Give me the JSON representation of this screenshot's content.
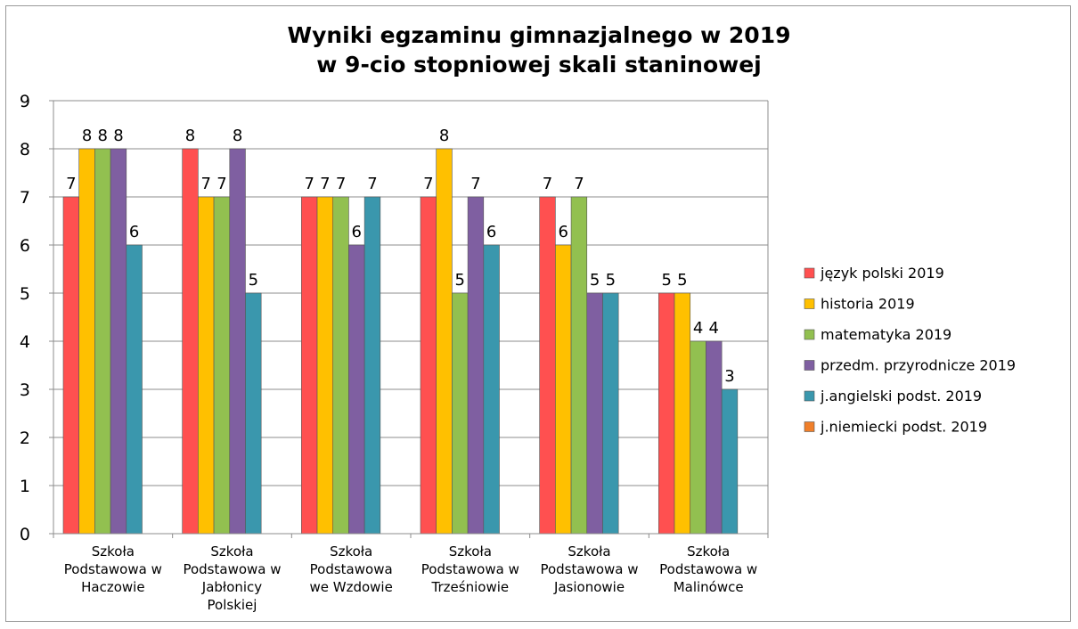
{
  "chart_data": {
    "type": "bar",
    "title_lines": [
      "Wyniki egzaminu gimnazjalnego w 2019",
      "w 9-cio stopniowej skali staninowej"
    ],
    "xlabel": "",
    "ylabel": "",
    "ylim": [
      0,
      9
    ],
    "yticks": [
      "0",
      "1",
      "2",
      "3",
      "4",
      "5",
      "6",
      "7",
      "8",
      "9"
    ],
    "grid": true,
    "legend_position": "right",
    "categories": [
      [
        "Szkoła",
        "Podstawowa w",
        "Haczowie"
      ],
      [
        "Szkoła",
        "Podstawowa w",
        "Jabłonicy",
        "Polskiej"
      ],
      [
        "Szkoła",
        "Podstawowa",
        "we Wzdowie"
      ],
      [
        "Szkoła",
        "Podstawowa w",
        "Trześniowie"
      ],
      [
        "Szkoła",
        "Podstawowa w",
        "Jasionowie"
      ],
      [
        "Szkoła",
        "Podstawowa w",
        "Malinówce"
      ]
    ],
    "series": [
      {
        "name": "język polski 2019",
        "color": "#ff5050",
        "values": [
          7,
          8,
          7,
          7,
          7,
          5
        ]
      },
      {
        "name": "historia 2019",
        "color": "#ffc000",
        "values": [
          8,
          7,
          7,
          8,
          6,
          5
        ]
      },
      {
        "name": "matematyka 2019",
        "color": "#92c050",
        "values": [
          8,
          7,
          7,
          5,
          7,
          4
        ]
      },
      {
        "name": "przedm. przyrodnicze 2019",
        "color": "#7f5fa1",
        "values": [
          8,
          8,
          6,
          7,
          5,
          4
        ]
      },
      {
        "name": "j.angielski podst. 2019",
        "color": "#3a97ad",
        "values": [
          6,
          5,
          7,
          6,
          5,
          3
        ]
      },
      {
        "name": "j.niemiecki podst. 2019",
        "color": "#f07f2a",
        "values": [
          null,
          null,
          null,
          null,
          null,
          null
        ]
      }
    ]
  }
}
